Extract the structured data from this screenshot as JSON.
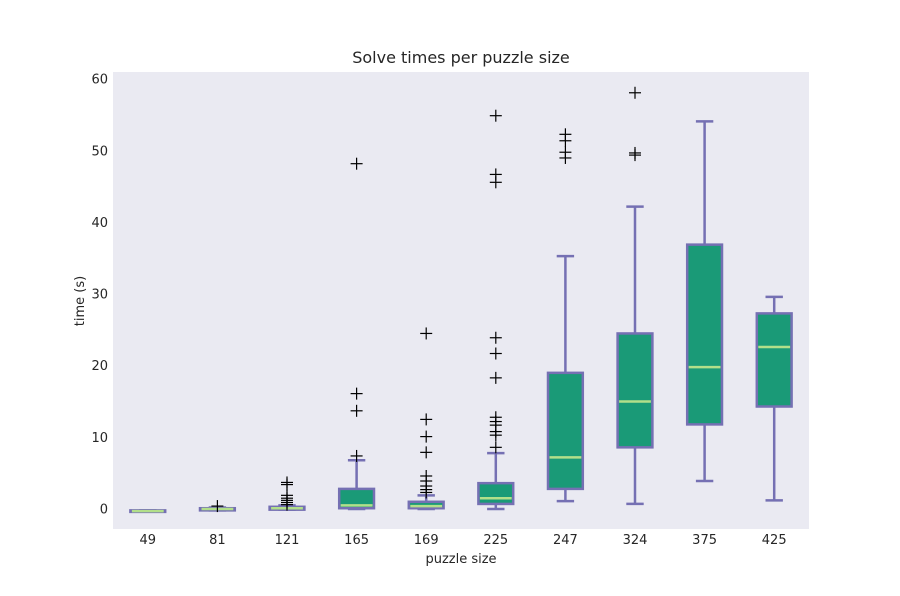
{
  "chart_data": {
    "type": "box",
    "title": "Solve times per puzzle size",
    "xlabel": "puzzle size",
    "ylabel": "time (s)",
    "ylim": [
      -2.8,
      61
    ],
    "yticks": [
      0,
      10,
      20,
      30,
      40,
      50,
      60
    ],
    "grid": false,
    "categories": [
      "49",
      "81",
      "121",
      "165",
      "169",
      "225",
      "247",
      "324",
      "375",
      "425"
    ],
    "boxes": [
      {
        "category": "49",
        "whisker_low": -0.3,
        "q1": -0.3,
        "median": -0.3,
        "q3": -0.2,
        "whisker_high": -0.2,
        "outliers": []
      },
      {
        "category": "81",
        "whisker_low": -0.2,
        "q1": -0.2,
        "median": 0.0,
        "q3": 0.1,
        "whisker_high": 0.2,
        "outliers": [
          0.4
        ]
      },
      {
        "category": "121",
        "whisker_low": -0.1,
        "q1": -0.1,
        "median": 0.1,
        "q3": 0.3,
        "whisker_high": 0.5,
        "outliers": [
          0.6,
          0.9,
          1.2,
          1.5,
          1.9,
          3.4,
          3.7
        ]
      },
      {
        "category": "165",
        "whisker_low": 0.0,
        "q1": 0.1,
        "median": 0.5,
        "q3": 2.8,
        "whisker_high": 6.8,
        "outliers": [
          7.4,
          13.7,
          16.1,
          48.2
        ]
      },
      {
        "category": "169",
        "whisker_low": 0.0,
        "q1": 0.1,
        "median": 0.4,
        "q3": 1.0,
        "whisker_high": 1.9,
        "outliers": [
          2.3,
          2.7,
          3.2,
          3.9,
          4.6,
          7.9,
          10.1,
          12.5,
          24.5
        ]
      },
      {
        "category": "225",
        "whisker_low": 0.0,
        "q1": 0.7,
        "median": 1.5,
        "q3": 3.6,
        "whisker_high": 7.8,
        "outliers": [
          8.6,
          10.3,
          10.8,
          11.7,
          12.2,
          12.8,
          18.3,
          21.7,
          23.9,
          45.6,
          46.7,
          54.9
        ]
      },
      {
        "category": "247",
        "whisker_low": 1.1,
        "q1": 2.8,
        "median": 7.2,
        "q3": 19.0,
        "whisker_high": 35.3,
        "outliers": [
          49.0,
          49.8,
          51.4,
          52.3
        ]
      },
      {
        "category": "324",
        "whisker_low": 0.7,
        "q1": 8.6,
        "median": 15.0,
        "q3": 24.5,
        "whisker_high": 42.2,
        "outliers": [
          49.4,
          49.7,
          58.1
        ]
      },
      {
        "category": "375",
        "whisker_low": 3.9,
        "q1": 11.8,
        "median": 19.8,
        "q3": 36.9,
        "whisker_high": 54.1,
        "outliers": []
      },
      {
        "category": "425",
        "whisker_low": 1.2,
        "q1": 14.3,
        "median": 22.6,
        "q3": 27.3,
        "whisker_high": 29.6,
        "outliers": []
      }
    ],
    "colors": {
      "box_fill": "#1a9a77",
      "box_edge": "#7570b3",
      "median": "#b2df8a",
      "outlier": "#000000",
      "plot_background": "#eaeaf2"
    }
  }
}
